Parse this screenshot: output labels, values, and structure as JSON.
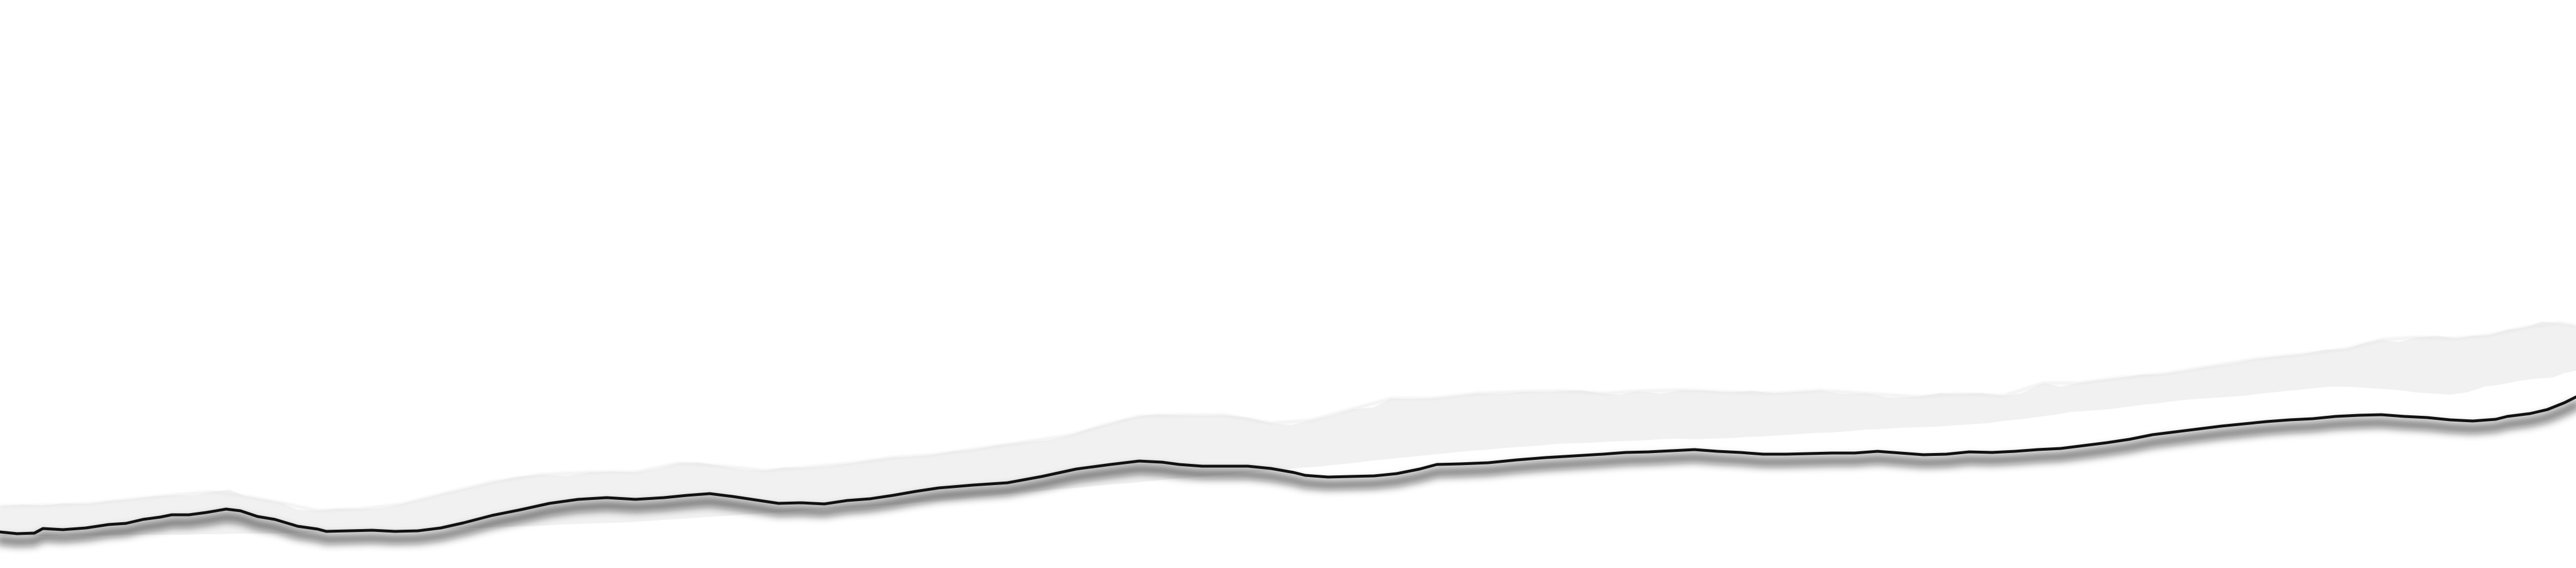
{
  "colors": {
    "background": "#ffffff",
    "paper_strip": "#f1f1f1",
    "tear_shadow": "#111111"
  },
  "graphic": {
    "name": "torn-paper-edge",
    "kind": "decorative-illustration"
  }
}
